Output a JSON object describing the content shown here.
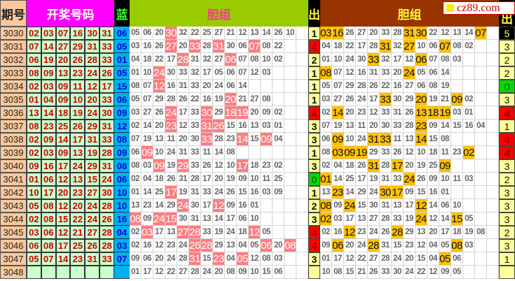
{
  "header": {
    "period": "期号",
    "winning": "开奖号码",
    "blue": "蓝",
    "group_left": "胆组",
    "out": "出",
    "group_right": "胆组",
    "out_right": "出"
  },
  "watermark": "cz89.com",
  "colors": {
    "pink_highlight": "#ff7c80",
    "gold_highlight": "#ffc000",
    "red_out": "#ff0000",
    "green_out": "#00dd00"
  },
  "rows": [
    {
      "period": "3030",
      "reds": [
        "02",
        "03",
        "07",
        "16",
        "30",
        "31"
      ],
      "blue": "06",
      "left": [
        "05",
        "06",
        "20",
        "30",
        "32",
        "22",
        "25",
        "27",
        "21",
        "12",
        "13",
        "14",
        "26",
        "10"
      ],
      "left_hl": [
        3
      ],
      "out": "1",
      "right": [
        "03",
        "16",
        "26",
        "27",
        "20",
        "33",
        "28",
        "31",
        "30",
        "22",
        "12",
        "13",
        "14",
        "07"
      ],
      "right_hl": [
        0,
        1,
        7,
        8,
        13
      ],
      "last": "5",
      "last_style": "k"
    },
    {
      "period": "3031",
      "reds": [
        "07",
        "14",
        "27",
        "29",
        "31",
        "33"
      ],
      "blue": "05",
      "left": [
        "03",
        "16",
        "26",
        "27",
        "20",
        "33",
        "28",
        "31",
        "30",
        "06",
        "07",
        "08",
        "22"
      ],
      "left_hl": [
        3,
        5,
        7,
        10
      ],
      "out": "4",
      "out_style": "r",
      "right": [
        "04",
        "18",
        "22",
        "17",
        "28",
        "31",
        "32",
        "27",
        "10",
        "06",
        "07",
        "08",
        "02"
      ],
      "right_hl": [
        5,
        7,
        10
      ],
      "last": "3"
    },
    {
      "period": "3032",
      "reds": [
        "06",
        "19",
        "20",
        "26",
        "28",
        "33"
      ],
      "blue": "01",
      "left": [
        "04",
        "18",
        "22",
        "17",
        "28",
        "31",
        "32",
        "27",
        "06",
        "07",
        "08",
        "10",
        "02"
      ],
      "left_hl": [
        4,
        8
      ],
      "out": "2",
      "right": [
        "01",
        "10",
        "24",
        "30",
        "33",
        "32",
        "17",
        "12",
        "06",
        "07",
        "08",
        "03"
      ],
      "right_hl": [
        4,
        8
      ],
      "last": "2"
    },
    {
      "period": "3033",
      "reds": [
        "08",
        "09",
        "13",
        "23",
        "24",
        "26"
      ],
      "blue": "05",
      "left": [
        "01",
        "10",
        "24",
        "30",
        "33",
        "32",
        "17",
        "05",
        "06",
        "07",
        "12",
        "03"
      ],
      "left_hl": [
        2
      ],
      "out": "1",
      "right": [
        "08",
        "07",
        "12",
        "16",
        "31",
        "33",
        "20",
        "24",
        "05",
        "06",
        "14"
      ],
      "right_hl": [
        0,
        7
      ],
      "last": "2"
    },
    {
      "period": "3034",
      "reds": [
        "02",
        "03",
        "09",
        "11",
        "12",
        "17"
      ],
      "blue": "15",
      "left": [
        "08",
        "07",
        "12",
        "16",
        "31",
        "33",
        "20",
        "24",
        "06",
        "14"
      ],
      "left_hl": [
        2
      ],
      "out": "1",
      "right": [
        "05",
        "07",
        "29",
        "28",
        "26",
        "22",
        "16",
        "27",
        "06",
        "08",
        "19"
      ],
      "right_hl": [],
      "last": "0",
      "last_style": "gr"
    },
    {
      "period": "3035",
      "reds": [
        "01",
        "04",
        "09",
        "10",
        "20",
        "33"
      ],
      "blue": "06",
      "left": [
        "05",
        "07",
        "29",
        "28",
        "26",
        "22",
        "16",
        "19",
        "20",
        "21",
        "27",
        "08"
      ],
      "left_hl": [
        8
      ],
      "out": "1",
      "right": [
        "03",
        "27",
        "26",
        "24",
        "17",
        "33",
        "30",
        "29",
        "20",
        "19",
        "21",
        "09",
        "02"
      ],
      "right_hl": [
        5,
        8,
        11
      ],
      "last": "3"
    },
    {
      "period": "3036",
      "reds": [
        "13",
        "14",
        "18",
        "19",
        "24",
        "30"
      ],
      "blue": "09",
      "left": [
        "03",
        "27",
        "26",
        "24",
        "17",
        "33",
        "30",
        "29",
        "18",
        "19",
        "20",
        "09",
        "02"
      ],
      "left_hl": [
        3,
        6,
        8,
        9
      ],
      "out": "4",
      "out_style": "r",
      "right": [
        "02",
        "14",
        "20",
        "23",
        "12",
        "33",
        "31",
        "26",
        "13",
        "18",
        "19",
        "03",
        "01"
      ],
      "right_hl": [
        1,
        8,
        9,
        10
      ],
      "last": "4",
      "last_style": "r"
    },
    {
      "period": "3037",
      "reds": [
        "08",
        "23",
        "25",
        "26",
        "29",
        "31"
      ],
      "blue": "12",
      "left": [
        "02",
        "14",
        "20",
        "23",
        "12",
        "33",
        "31",
        "26",
        "15",
        "16",
        "13",
        "03",
        "01"
      ],
      "left_hl": [
        3,
        6,
        7
      ],
      "out": "3",
      "right": [
        "07",
        "19",
        "13",
        "11",
        "20",
        "30",
        "33",
        "28",
        "23",
        "09",
        "14",
        "15",
        "16",
        "04"
      ],
      "right_hl": [
        8
      ],
      "last": "1"
    },
    {
      "period": "3038",
      "reds": [
        "02",
        "09",
        "14",
        "17",
        "31",
        "33"
      ],
      "blue": "08",
      "left": [
        "07",
        "19",
        "13",
        "11",
        "20",
        "30",
        "33",
        "28",
        "23",
        "14",
        "15",
        "09",
        "04"
      ],
      "left_hl": [
        6,
        9,
        11
      ],
      "out": "3",
      "right": [
        "06",
        "09",
        "10",
        "24",
        "31",
        "33",
        "11",
        "13",
        "14",
        "15",
        "08"
      ],
      "right_hl": [
        1,
        4,
        5,
        8
      ],
      "last": "4",
      "last_style": "r"
    },
    {
      "period": "3039",
      "reds": [
        "02",
        "03",
        "09",
        "13",
        "19",
        "28"
      ],
      "blue": "09",
      "left": [
        "06",
        "09",
        "10",
        "24",
        "31",
        "33",
        "11",
        "14",
        "08"
      ],
      "left_hl": [
        1
      ],
      "out": "1",
      "right": [
        "08",
        "03",
        "09",
        "19",
        "29",
        "33",
        "26",
        "12",
        "10",
        "18",
        "11",
        "23",
        "02"
      ],
      "right_hl": [
        1,
        2,
        3,
        12
      ],
      "last": "4",
      "last_style": "r"
    },
    {
      "period": "3040",
      "reds": [
        "09",
        "16",
        "17",
        "24",
        "29",
        "31"
      ],
      "blue": "08",
      "left": [
        "08",
        "03",
        "09",
        "19",
        "29",
        "33",
        "26",
        "12",
        "10",
        "17",
        "18",
        "23",
        "02"
      ],
      "left_hl": [
        2,
        4,
        9
      ],
      "out": "3",
      "right": [
        "02",
        "04",
        "18",
        "26",
        "31",
        "28",
        "17",
        "20",
        "19",
        "25",
        "09"
      ],
      "right_hl": [
        4,
        6,
        10
      ],
      "last": "3"
    },
    {
      "period": "3041",
      "reds": [
        "01",
        "06",
        "12",
        "13",
        "15",
        "24"
      ],
      "blue": "06",
      "left": [
        "02",
        "04",
        "18",
        "26",
        "31",
        "28",
        "17",
        "20",
        "19",
        "09",
        "10",
        "11",
        "25"
      ],
      "left_hl": [],
      "out": "0",
      "out_style": "gr",
      "right": [
        "01",
        "14",
        "25",
        "17",
        "19",
        "31",
        "33",
        "24",
        "26",
        "09",
        "10",
        "11",
        "03"
      ],
      "right_hl": [
        0,
        7
      ],
      "last": "2"
    },
    {
      "period": "3042",
      "reds": [
        "10",
        "17",
        "20",
        "23",
        "27",
        "30"
      ],
      "blue": "10",
      "left": [
        "01",
        "14",
        "25",
        "17",
        "19",
        "31",
        "33",
        "24",
        "26",
        "15",
        "16",
        "03",
        "09"
      ],
      "left_hl": [
        3
      ],
      "out": "1",
      "right": [
        "13",
        "23",
        "14",
        "29",
        "24",
        "30",
        "17",
        "09",
        "15",
        "16",
        "01"
      ],
      "right_hl": [
        1,
        5,
        6
      ],
      "last": "3"
    },
    {
      "period": "3043",
      "reds": [
        "05",
        "08",
        "12",
        "20",
        "24",
        "28"
      ],
      "blue": "10",
      "left": [
        "13",
        "23",
        "14",
        "29",
        "24",
        "30",
        "17",
        "12",
        "09",
        "16",
        "01"
      ],
      "left_hl": [
        4,
        7
      ],
      "out": "2",
      "right": [
        "08",
        "09",
        "24",
        "15",
        "30",
        "31",
        "13",
        "17",
        "12",
        "14",
        "06",
        "10"
      ],
      "right_hl": [
        0,
        2,
        8
      ],
      "last": "3"
    },
    {
      "period": "3044",
      "reds": [
        "02",
        "08",
        "15",
        "22",
        "24",
        "26"
      ],
      "blue": "16",
      "left": [
        "08",
        "09",
        "24",
        "15",
        "30",
        "31",
        "13",
        "14",
        "17",
        "06",
        "10"
      ],
      "left_hl": [
        0,
        2,
        3
      ],
      "out": "3",
      "right": [
        "02",
        "03",
        "17",
        "13",
        "27",
        "28",
        "33",
        "19",
        "24",
        "12",
        "14",
        "15",
        "05"
      ],
      "right_hl": [
        0,
        8,
        11
      ],
      "last": "3"
    },
    {
      "period": "3045",
      "reds": [
        "03",
        "06",
        "12",
        "21",
        "27",
        "28"
      ],
      "blue": "04",
      "left": [
        "02",
        "03",
        "17",
        "13",
        "27",
        "28",
        "33",
        "19",
        "24",
        "18",
        "12",
        "05"
      ],
      "left_hl": [
        1,
        4,
        5,
        10
      ],
      "out": "4",
      "out_style": "r",
      "right": [
        "02",
        "16",
        "12",
        "23",
        "24",
        "26",
        "28",
        "29",
        "13",
        "20",
        "17",
        "18",
        "19",
        "08"
      ],
      "right_hl": [
        2,
        6
      ],
      "last": "2"
    },
    {
      "period": "3046",
      "reds": [
        "06",
        "08",
        "17",
        "25",
        "26",
        "28"
      ],
      "blue": "03",
      "left": [
        "02",
        "16",
        "12",
        "23",
        "24",
        "26",
        "28",
        "29",
        "13",
        "04",
        "05",
        "06",
        "20",
        "08"
      ],
      "left_hl": [
        5,
        6,
        11,
        13
      ],
      "out": "4",
      "out_style": "r",
      "right": [
        "09",
        "06",
        "20",
        "24",
        "28",
        "31",
        "15",
        "23",
        "12",
        "04",
        "05",
        "08",
        "03"
      ],
      "right_hl": [
        1,
        4,
        11
      ],
      "last": "3"
    },
    {
      "period": "3047",
      "reds": [
        "05",
        "07",
        "14",
        "23",
        "31",
        "33"
      ],
      "blue": "07",
      "left": [
        "09",
        "06",
        "20",
        "24",
        "28",
        "31",
        "15",
        "23",
        "04",
        "05",
        "12",
        "08",
        "03"
      ],
      "left_hl": [
        5,
        7,
        9
      ],
      "out": "3",
      "right": [
        "01",
        "17",
        "12",
        "22",
        "27",
        "28",
        "24",
        "20",
        "15",
        "04",
        "05",
        "06"
      ],
      "right_hl": [
        10
      ],
      "last": "1"
    },
    {
      "period": "3048",
      "reds": [
        "",
        "",
        "",
        "",
        "",
        ""
      ],
      "blue": "",
      "left": [
        "01",
        "17",
        "12",
        "22",
        "27",
        "28",
        "24",
        "20",
        "08",
        "09",
        "10",
        "15",
        "06"
      ],
      "left_hl": [],
      "out": "",
      "right": [
        "10",
        "08",
        "15",
        "21",
        "26",
        "33",
        "30",
        "24",
        "22",
        "12",
        "09",
        "05"
      ],
      "right_hl": [],
      "last": ""
    }
  ]
}
